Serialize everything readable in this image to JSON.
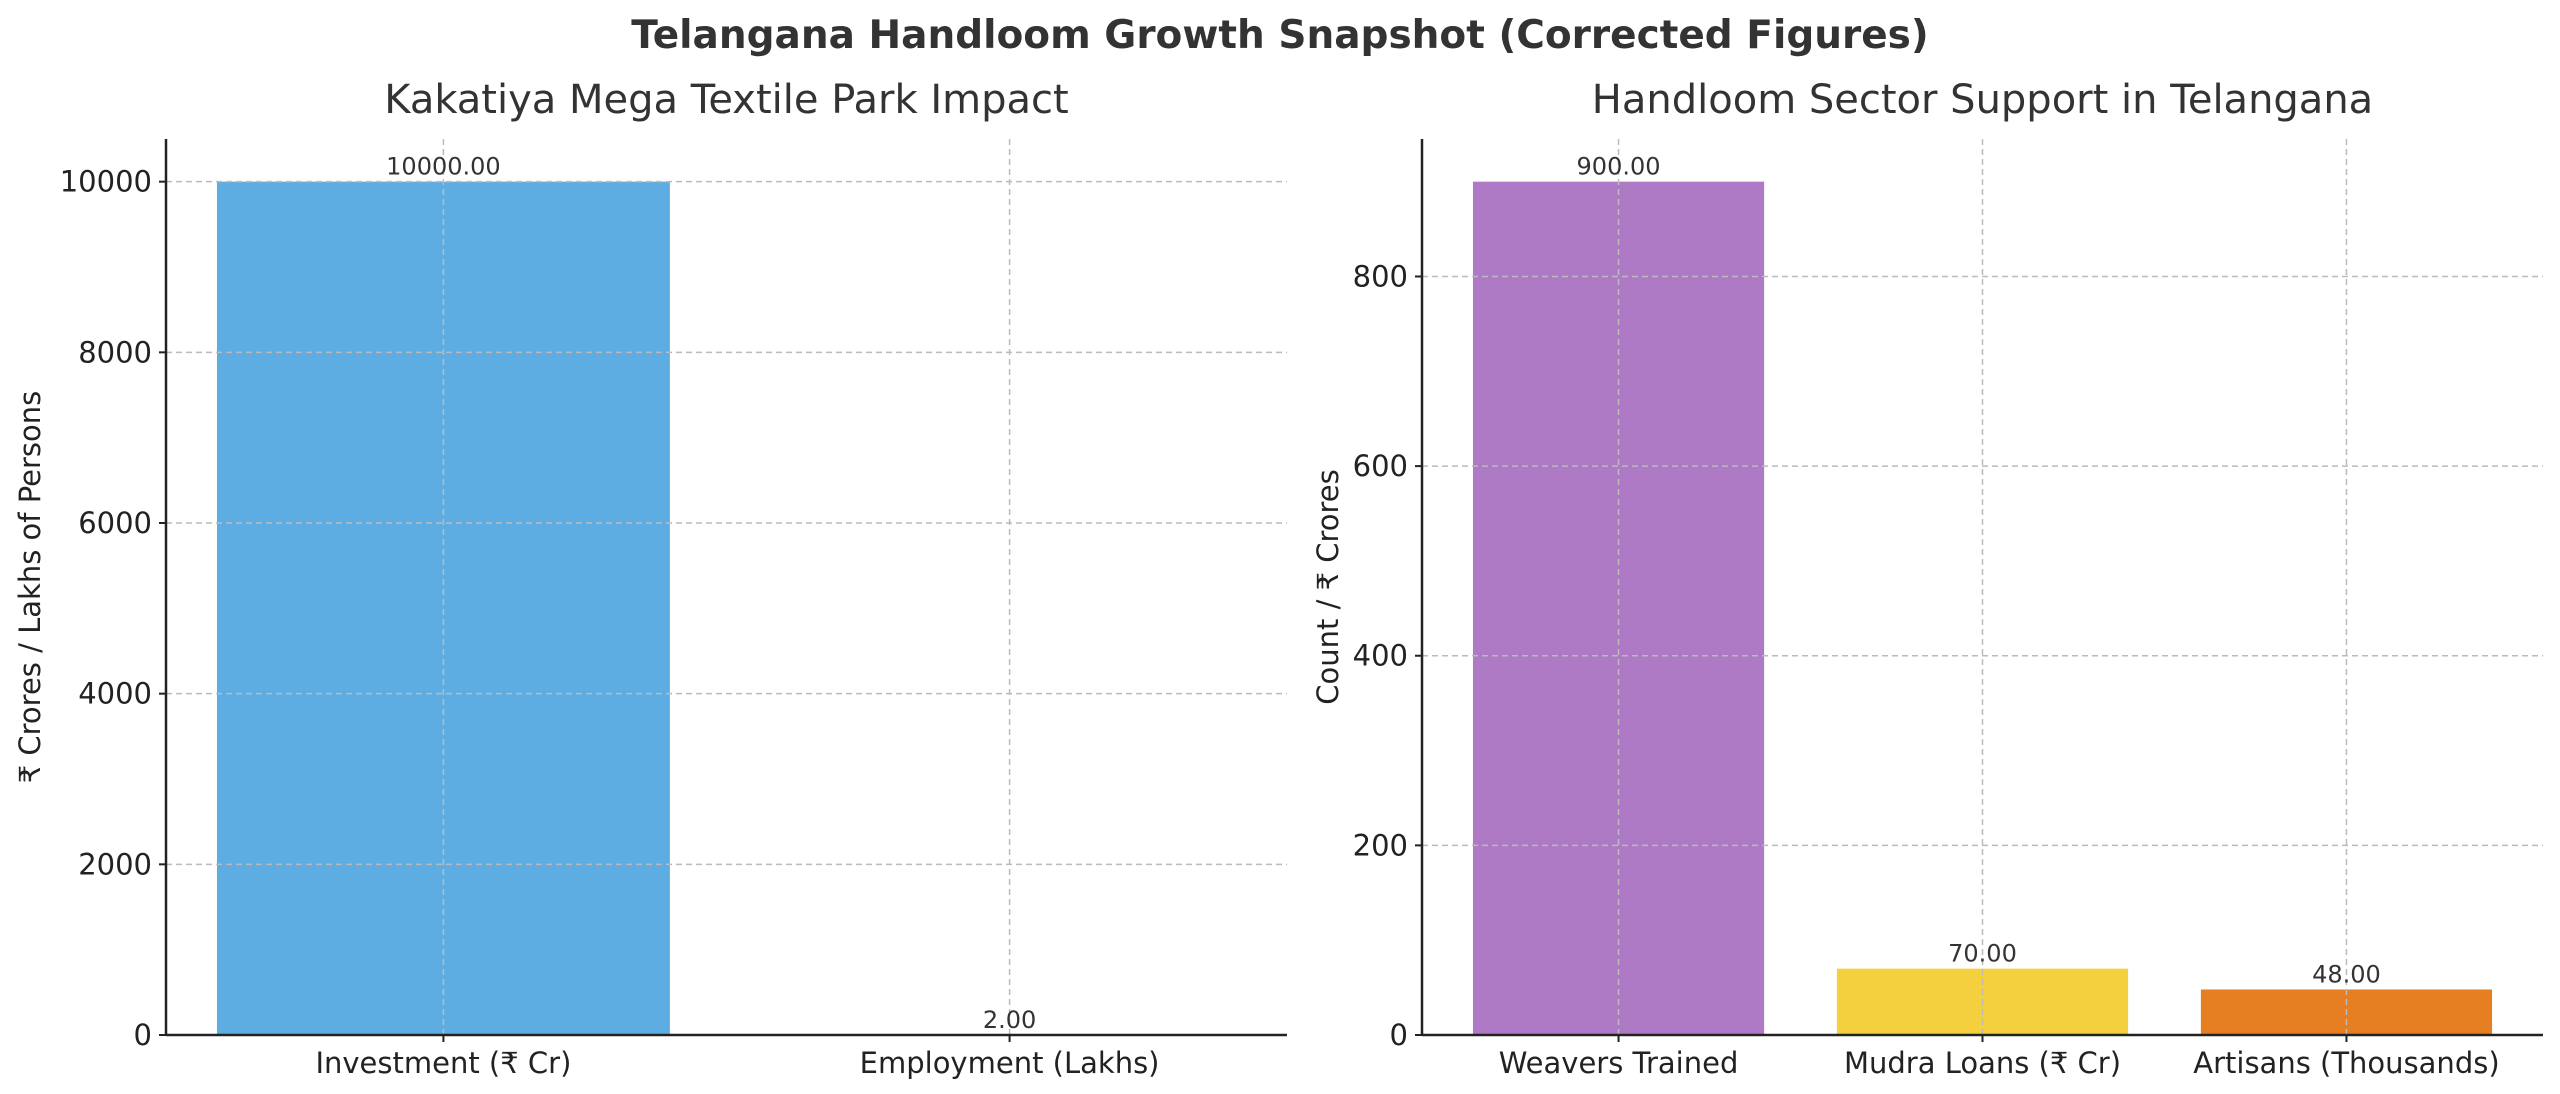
{
  "title": "Telangana Handloom Growth Snapshot (Corrected Figures)",
  "chart_data": [
    {
      "type": "bar",
      "title": "Kakatiya Mega Textile Park Impact",
      "categories": [
        "Investment (₹ Cr)",
        "Employment (Lakhs)"
      ],
      "values": [
        10000,
        2
      ],
      "value_labels": [
        "10000.00",
        "2.00"
      ],
      "colors": [
        "#5DADE2",
        "#5DADE2"
      ],
      "xlabel": "",
      "ylabel": "₹ Crores / Lakhs of Persons",
      "ylim": [
        0,
        10500
      ],
      "yticks": [
        0,
        2000,
        4000,
        6000,
        8000,
        10000
      ],
      "xlim": [
        -0.49,
        1.49
      ],
      "grid": true
    },
    {
      "type": "bar",
      "title": "Handloom Sector Support in Telangana",
      "categories": [
        "Weavers Trained",
        "Mudra Loans (₹ Cr)",
        "Artisans (Thousands)"
      ],
      "values": [
        900,
        70,
        48
      ],
      "value_labels": [
        "900.00",
        "70.00",
        "48.00"
      ],
      "colors": [
        "#AF7AC5",
        "#F4D03F",
        "#E67E22"
      ],
      "xlabel": "",
      "ylabel": "Count / ₹ Crores",
      "ylim": [
        0,
        945
      ],
      "yticks": [
        0,
        200,
        400,
        600,
        800
      ],
      "xlim": [
        -0.54,
        2.54
      ],
      "grid": true
    }
  ]
}
